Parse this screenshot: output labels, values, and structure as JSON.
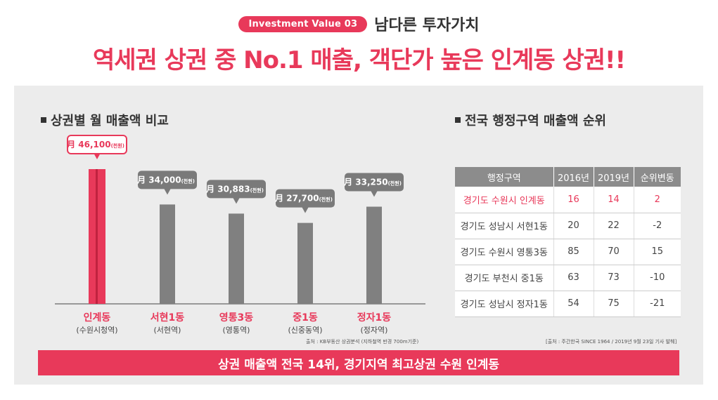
{
  "header": {
    "tag": "Investment Value 03",
    "tag_title": "남다른 투자가치",
    "headline": "역세권 상권 중 No.1 매출, 객단가 높은 인계동 상권!!"
  },
  "left_section": {
    "title": "상권별 월 매출액 비교",
    "source": "출처 : KB부동산 상권분석 (지하철역 반경 700m기준)"
  },
  "right_section": {
    "title": "전국 행정구역 매출액 순위",
    "source": "[출처 : 주간한국 SINCE 1964 / 2019년 9월 23일 기사 발췌]",
    "columns": [
      "행정구역",
      "2016년",
      "2019년",
      "순위변동"
    ],
    "rows": [
      [
        "경기도 수원시 인계동",
        "16",
        "14",
        "2"
      ],
      [
        "경기도 성남시 서현1동",
        "20",
        "22",
        "-2"
      ],
      [
        "경기도 수원시 영통3동",
        "85",
        "70",
        "15"
      ],
      [
        "경기도 부천시 중1동",
        "63",
        "73",
        "-10"
      ],
      [
        "경기도 성남시 정자1동",
        "54",
        "75",
        "-21"
      ]
    ]
  },
  "bottom_banner": "상권 매출액 전국 14위, 경기지역 최고상권 수원 인계동",
  "colors": {
    "accent": "#e8395a",
    "bar": "#808080",
    "callout": "#7a7a7a"
  },
  "chart_data": {
    "type": "bar",
    "categories": [
      "인계동",
      "서현1동",
      "영통3동",
      "중1동",
      "정자1동"
    ],
    "sublabels": [
      "(수원시청역)",
      "(서현역)",
      "(영통역)",
      "(신중동역)",
      "(정자역)"
    ],
    "values": [
      46100,
      34000,
      30883,
      27700,
      33250
    ],
    "value_labels": [
      "月 46,100",
      "月 34,000",
      "月 30,883",
      "月 27,700",
      "月 33,250"
    ],
    "value_unit": "(천원)",
    "highlight_index": 0
  }
}
